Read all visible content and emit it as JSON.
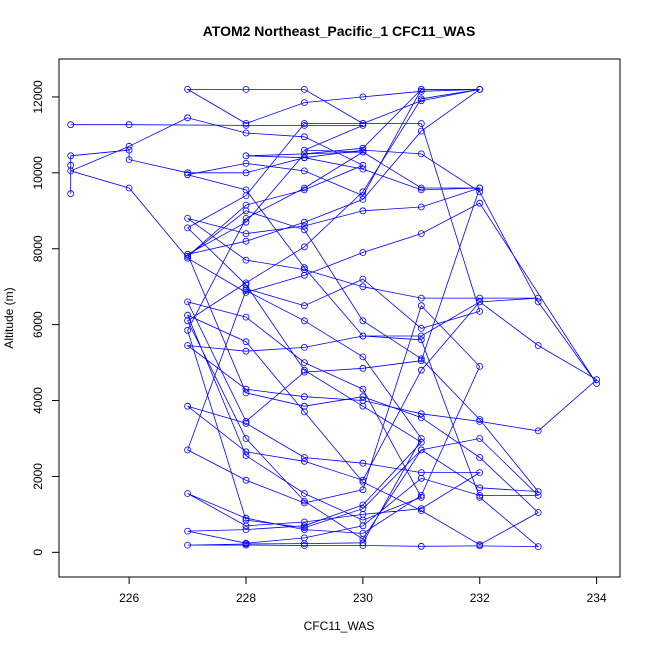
{
  "chart_data": {
    "type": "line",
    "title": "ATOM2 Northeast_Pacific_1 CFC11_WAS",
    "xlabel": "CFC11_WAS",
    "ylabel": "Altitude (m)",
    "xlim": [
      224.8,
      234.4
    ],
    "ylim": [
      -650,
      13000
    ],
    "x_ticks": [
      226,
      228,
      230,
      232,
      234
    ],
    "y_ticks": [
      0,
      2000,
      4000,
      6000,
      8000,
      10000,
      12000
    ],
    "grid": false,
    "line_color": "#0000ff",
    "marker": "open-circle",
    "series": [
      {
        "x": [
          225,
          226,
          228,
          229,
          230,
          229,
          230,
          228,
          229,
          230,
          231,
          232,
          231,
          230,
          229,
          228,
          227,
          228,
          229,
          230,
          231,
          232,
          233,
          232,
          231,
          230,
          229,
          228,
          227,
          228,
          229,
          230,
          231,
          232,
          233,
          234,
          233,
          232,
          231,
          230,
          229,
          228,
          227,
          228,
          229,
          230,
          231,
          232,
          231,
          230,
          229,
          228,
          227,
          228,
          229,
          230,
          231,
          232,
          231,
          230,
          229,
          228,
          227,
          228,
          229,
          230,
          231,
          230,
          229,
          228,
          227,
          228,
          229,
          230,
          231,
          232,
          233,
          232,
          231,
          230,
          229,
          228,
          227,
          228,
          229,
          230,
          231,
          232,
          231,
          230,
          229,
          228,
          227,
          228,
          229,
          230,
          231,
          232,
          231,
          230,
          229,
          228,
          227
        ],
        "y": [
          11270,
          11270,
          11250,
          11250,
          11250,
          10600,
          10550,
          10450,
          10400,
          10100,
          9550,
          9600,
          9100,
          9000,
          8600,
          8400,
          8800,
          7700,
          7450,
          7000,
          6700,
          6700,
          6700,
          6600,
          5700,
          5700,
          5400,
          5300,
          5450,
          4300,
          4100,
          4000,
          3650,
          3450,
          3200,
          4550,
          5450,
          6600,
          4800,
          1900,
          2400,
          2650,
          3850,
          3400,
          2500,
          2350,
          2100,
          2100,
          1150,
          1000,
          800,
          700,
          1550,
          900,
          600,
          500,
          1500,
          4900,
          6500,
          1650,
          1300,
          1900,
          2700,
          6900,
          6100,
          5150,
          3000,
          250,
          230,
          220,
          190,
          190,
          180,
          180,
          160,
          170,
          150,
          1450,
          5600,
          5700,
          7500,
          9550,
          9950,
          10250,
          10050,
          9400,
          12200,
          12200,
          12150,
          12000,
          11850,
          11300,
          12200,
          12200,
          12200,
          11300,
          11900,
          12200,
          11100,
          9300,
          8700,
          8200,
          7850
        ]
      },
      {
        "x": [
          225,
          225,
          225,
          226,
          226,
          227,
          228,
          229,
          230,
          231,
          232,
          233,
          234,
          232,
          231,
          230,
          229,
          228,
          227,
          226,
          225,
          226,
          227,
          228,
          229,
          230,
          229,
          228,
          227,
          228,
          229,
          230,
          231,
          232,
          233,
          232,
          231,
          230,
          229,
          228,
          227,
          228,
          229,
          230,
          231,
          232,
          231,
          230,
          229,
          228,
          227,
          228,
          229,
          230,
          231,
          230,
          229,
          228,
          227,
          228,
          229,
          230,
          231,
          232,
          233,
          232,
          231,
          230,
          229,
          228,
          227,
          228,
          229,
          230,
          231,
          232,
          231,
          230,
          229,
          228,
          227,
          228,
          229,
          230,
          231,
          232,
          233,
          232,
          231,
          230,
          229,
          228,
          227,
          228,
          229,
          230,
          231,
          230,
          229,
          228,
          227,
          228,
          229,
          230,
          231,
          232,
          231,
          230,
          229,
          228
        ],
        "y": [
          9450,
          10200,
          10450,
          10600,
          10350,
          10000,
          10000,
          10400,
          10600,
          10500,
          9500,
          6600,
          4450,
          9200,
          8400,
          7900,
          7300,
          6850,
          7750,
          9600,
          10050,
          10700,
          11450,
          11050,
          10950,
          10200,
          9550,
          9150,
          7800,
          9000,
          8500,
          6100,
          5100,
          3500,
          1600,
          1700,
          2700,
          1150,
          650,
          850,
          5850,
          8800,
          9600,
          10550,
          9600,
          9600,
          5050,
          4850,
          4750,
          3450,
          6600,
          6200,
          5000,
          4300,
          1450,
          850,
          1550,
          2550,
          6250,
          5550,
          3700,
          1850,
          1100,
          200,
          1050,
          2500,
          3550,
          4100,
          3850,
          4200,
          7850,
          8700,
          10500,
          10650,
          12200,
          12200,
          11950,
          9500,
          8050,
          7100,
          6100,
          3000,
          1350,
          350,
          2700,
          3000,
          1500,
          1500,
          1950,
          700,
          380,
          240,
          560,
          600,
          700,
          1250,
          2900,
          3850,
          4800,
          7050,
          8550,
          9400,
          11300,
          11300,
          11300,
          6350,
          5900,
          7200,
          6500,
          6950
        ]
      }
    ]
  }
}
